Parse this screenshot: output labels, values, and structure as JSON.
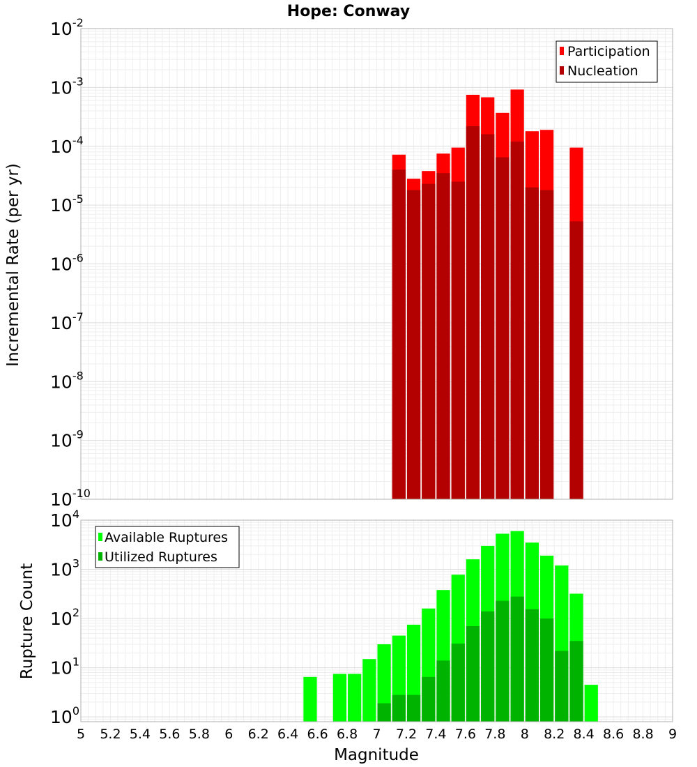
{
  "chart_data": [
    {
      "type": "bar",
      "title": "Hope: Conway",
      "ylabel": "Incremental Rate (per yr)",
      "yscale": "log",
      "ylim": [
        1e-10,
        0.01
      ],
      "xlim": [
        5,
        9
      ],
      "bin_width": 0.1,
      "legend_position": "top-right",
      "series": [
        {
          "name": "Participation",
          "color": "#ff0000",
          "points": [
            [
              7.15,
              7.2e-05
            ],
            [
              7.25,
              2.8e-05
            ],
            [
              7.35,
              3.8e-05
            ],
            [
              7.45,
              7.5e-05
            ],
            [
              7.55,
              9.5e-05
            ],
            [
              7.65,
              0.00075
            ],
            [
              7.75,
              0.00068
            ],
            [
              7.85,
              0.00037
            ],
            [
              7.95,
              0.00092
            ],
            [
              8.05,
              0.00018
            ],
            [
              8.15,
              0.00019
            ],
            [
              8.35,
              9.5e-05
            ]
          ]
        },
        {
          "name": "Nucleation",
          "color": "#b30000",
          "points": [
            [
              7.15,
              4e-05
            ],
            [
              7.25,
              1.8e-05
            ],
            [
              7.35,
              2.3e-05
            ],
            [
              7.45,
              3.5e-05
            ],
            [
              7.55,
              2.5e-05
            ],
            [
              7.65,
              0.00022
            ],
            [
              7.75,
              0.00016
            ],
            [
              7.85,
              6.5e-05
            ],
            [
              7.95,
              0.00012
            ],
            [
              8.05,
              2e-05
            ],
            [
              8.15,
              1.8e-05
            ],
            [
              8.35,
              5.3e-06
            ]
          ]
        }
      ]
    },
    {
      "type": "bar",
      "title": "",
      "xlabel": "Magnitude",
      "ylabel": "Rupture Count",
      "yscale": "log",
      "ylim": [
        0.8,
        10000
      ],
      "xlim": [
        5,
        9
      ],
      "bin_width": 0.1,
      "legend_position": "top-left",
      "x_ticks": [
        "5",
        "5.2",
        "5.4",
        "5.6",
        "5.8",
        "6",
        "6.2",
        "6.4",
        "6.6",
        "6.8",
        "7",
        "7.2",
        "7.4",
        "7.6",
        "7.8",
        "8",
        "8.2",
        "8.4",
        "8.6",
        "8.8",
        "9"
      ],
      "series": [
        {
          "name": "Available Ruptures",
          "color": "#00ff00",
          "points": [
            [
              6.55,
              6.5
            ],
            [
              6.75,
              7.5
            ],
            [
              6.85,
              7.5
            ],
            [
              6.95,
              15
            ],
            [
              7.05,
              30
            ],
            [
              7.15,
              45
            ],
            [
              7.25,
              75
            ],
            [
              7.35,
              160
            ],
            [
              7.45,
              380
            ],
            [
              7.55,
              780
            ],
            [
              7.65,
              1600
            ],
            [
              7.75,
              3000
            ],
            [
              7.85,
              5300
            ],
            [
              7.95,
              6000
            ],
            [
              8.05,
              3500
            ],
            [
              8.15,
              1900
            ],
            [
              8.25,
              1200
            ],
            [
              8.35,
              320
            ],
            [
              8.45,
              4.5
            ]
          ]
        },
        {
          "name": "Utilized Ruptures",
          "color": "#00b300",
          "points": [
            [
              7.05,
              1.9
            ],
            [
              7.15,
              2.8
            ],
            [
              7.25,
              2.8
            ],
            [
              7.35,
              6.5
            ],
            [
              7.45,
              14
            ],
            [
              7.55,
              31
            ],
            [
              7.65,
              70
            ],
            [
              7.75,
              140
            ],
            [
              7.85,
              230
            ],
            [
              7.95,
              280
            ],
            [
              8.05,
              155
            ],
            [
              8.15,
              100
            ],
            [
              8.25,
              22
            ],
            [
              8.35,
              35
            ]
          ]
        }
      ]
    }
  ]
}
